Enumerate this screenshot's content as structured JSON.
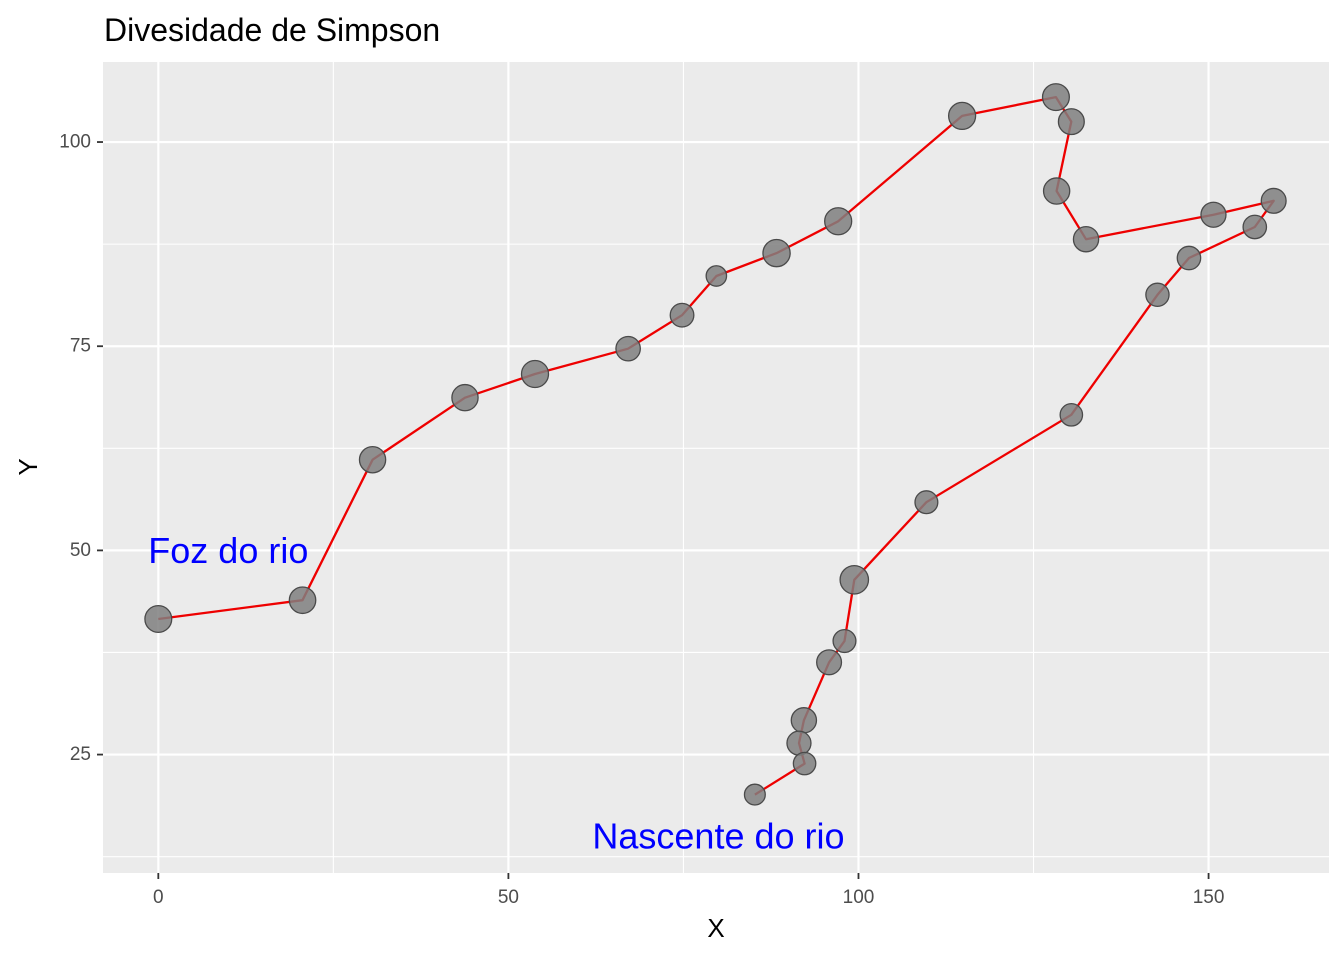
{
  "chart_data": {
    "type": "scatter",
    "title": "Divesidade de Simpson",
    "xlabel": "X",
    "ylabel": "Y",
    "xlim": [
      -7.9,
      167.2
    ],
    "ylim": [
      10.5,
      109.8
    ],
    "x_major_ticks": [
      0,
      50,
      100,
      150
    ],
    "x_minor_ticks": [
      25,
      75,
      125
    ],
    "y_major_ticks": [
      25,
      50,
      75,
      100
    ],
    "y_minor_ticks": [
      12.5,
      37.5,
      62.5,
      87.5
    ],
    "x_tick_labels": [
      "0",
      "50",
      "100",
      "150"
    ],
    "y_tick_labels": [
      "25",
      "50",
      "75",
      "100"
    ],
    "grid": true,
    "legend": "none",
    "colors": {
      "panel_background": "#ebebeb",
      "grid_line": "#ffffff",
      "path_line": "#ee0000",
      "point_fill": "#7f7f7f",
      "point_stroke": "#4a4a4a",
      "annotation_text": "#0000ff"
    },
    "series": [
      {
        "values": [
          {
            "x": 0.0,
            "y": 41.6,
            "size": 0.78
          },
          {
            "x": 20.6,
            "y": 43.9,
            "size": 0.77
          },
          {
            "x": 30.6,
            "y": 61.1,
            "size": 0.76
          },
          {
            "x": 43.8,
            "y": 68.7,
            "size": 0.76
          },
          {
            "x": 53.8,
            "y": 71.6,
            "size": 0.79
          },
          {
            "x": 67.1,
            "y": 74.7,
            "size": 0.68
          },
          {
            "x": 74.8,
            "y": 78.8,
            "size": 0.65
          },
          {
            "x": 79.7,
            "y": 83.6,
            "size": 0.52
          },
          {
            "x": 88.3,
            "y": 86.4,
            "size": 0.8
          },
          {
            "x": 97.1,
            "y": 90.3,
            "size": 0.79
          },
          {
            "x": 114.8,
            "y": 103.2,
            "size": 0.79
          },
          {
            "x": 128.2,
            "y": 105.5,
            "size": 0.78
          },
          {
            "x": 130.4,
            "y": 102.5,
            "size": 0.74
          },
          {
            "x": 128.3,
            "y": 94.0,
            "size": 0.76
          },
          {
            "x": 132.5,
            "y": 88.1,
            "size": 0.72
          },
          {
            "x": 150.7,
            "y": 91.1,
            "size": 0.71
          },
          {
            "x": 159.3,
            "y": 92.8,
            "size": 0.7
          },
          {
            "x": 156.6,
            "y": 89.6,
            "size": 0.64
          },
          {
            "x": 147.2,
            "y": 85.8,
            "size": 0.64
          },
          {
            "x": 142.7,
            "y": 81.3,
            "size": 0.63
          },
          {
            "x": 130.4,
            "y": 66.6,
            "size": 0.6
          },
          {
            "x": 109.7,
            "y": 55.9,
            "size": 0.62
          },
          {
            "x": 99.4,
            "y": 46.4,
            "size": 0.85
          },
          {
            "x": 98.0,
            "y": 38.9,
            "size": 0.62
          },
          {
            "x": 95.8,
            "y": 36.3,
            "size": 0.7
          },
          {
            "x": 92.2,
            "y": 29.2,
            "size": 0.72
          },
          {
            "x": 91.5,
            "y": 26.4,
            "size": 0.67
          },
          {
            "x": 92.3,
            "y": 23.9,
            "size": 0.6
          },
          {
            "x": 85.2,
            "y": 20.1,
            "size": 0.53
          }
        ]
      }
    ],
    "annotations": [
      {
        "text": "Foz do rio",
        "x": 10.0,
        "y": 50.0
      },
      {
        "text": "Nascente do rio",
        "x": 80.0,
        "y": 15.0
      }
    ]
  }
}
